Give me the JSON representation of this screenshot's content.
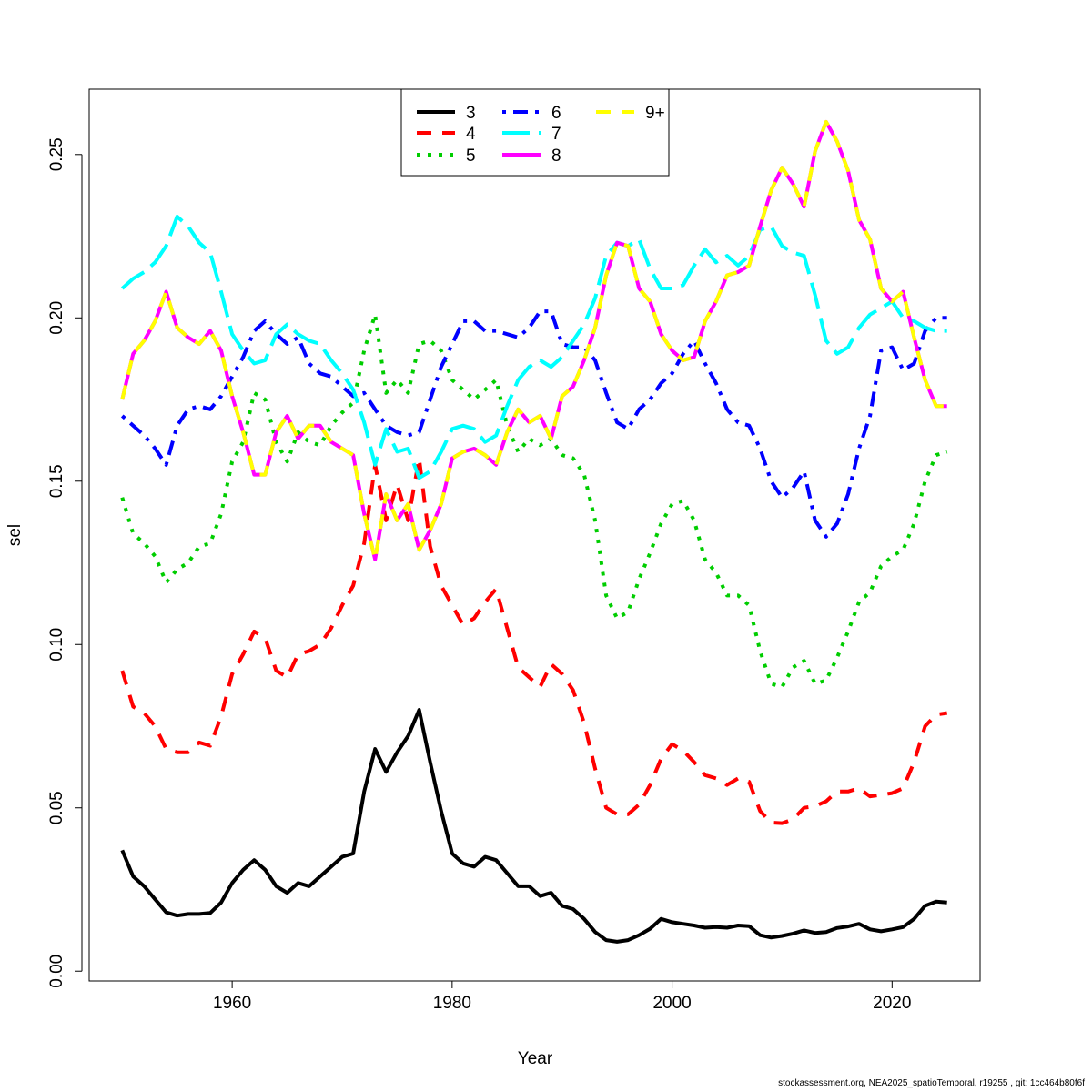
{
  "chart_data": {
    "type": "line",
    "title": "",
    "xlabel": "Year",
    "ylabel": "sel",
    "xlim": [
      1947,
      2028
    ],
    "ylim": [
      -0.003,
      0.27
    ],
    "x_ticks": [
      1960,
      1980,
      2000,
      2020
    ],
    "y_ticks": [
      0.0,
      0.05,
      0.1,
      0.15,
      0.2,
      0.25
    ],
    "y_tick_labels": [
      "0.00",
      "0.05",
      "0.10",
      "0.15",
      "0.20",
      "0.25"
    ],
    "grid": false,
    "legend_position": "top-center",
    "x": [
      1950,
      1951,
      1952,
      1953,
      1954,
      1955,
      1956,
      1957,
      1958,
      1959,
      1960,
      1961,
      1962,
      1963,
      1964,
      1965,
      1966,
      1967,
      1968,
      1969,
      1970,
      1971,
      1972,
      1973,
      1974,
      1975,
      1976,
      1977,
      1978,
      1979,
      1980,
      1981,
      1982,
      1983,
      1984,
      1985,
      1986,
      1987,
      1988,
      1989,
      1990,
      1991,
      1992,
      1993,
      1994,
      1995,
      1996,
      1997,
      1998,
      1999,
      2000,
      2001,
      2002,
      2003,
      2004,
      2005,
      2006,
      2007,
      2008,
      2009,
      2010,
      2011,
      2012,
      2013,
      2014,
      2015,
      2016,
      2017,
      2018,
      2019,
      2020,
      2021,
      2022,
      2023,
      2024,
      2025
    ],
    "series": [
      {
        "name": "3",
        "color": "#000000",
        "dash": "solid",
        "values": [
          0.037,
          0.029,
          0.026,
          0.022,
          0.018,
          0.017,
          0.0175,
          0.0175,
          0.0178,
          0.021,
          0.027,
          0.031,
          0.034,
          0.031,
          0.026,
          0.024,
          0.027,
          0.026,
          0.029,
          0.032,
          0.035,
          0.036,
          0.055,
          0.068,
          0.061,
          0.067,
          0.072,
          0.08,
          0.064,
          0.049,
          0.036,
          0.033,
          0.032,
          0.035,
          0.034,
          0.03,
          0.026,
          0.026,
          0.023,
          0.024,
          0.02,
          0.019,
          0.016,
          0.012,
          0.0095,
          0.009,
          0.0095,
          0.011,
          0.013,
          0.016,
          0.015,
          0.0145,
          0.014,
          0.0133,
          0.0135,
          0.0133,
          0.014,
          0.0138,
          0.011,
          0.0103,
          0.0108,
          0.0115,
          0.0125,
          0.0117,
          0.012,
          0.0132,
          0.0137,
          0.0145,
          0.0128,
          0.0122,
          0.0128,
          0.0135,
          0.016,
          0.02,
          0.0213,
          0.021
        ]
      },
      {
        "name": "4",
        "color": "#ff0000",
        "dash": "dashed",
        "values": [
          0.092,
          0.081,
          0.079,
          0.075,
          0.068,
          0.067,
          0.067,
          0.07,
          0.069,
          0.078,
          0.091,
          0.097,
          0.104,
          0.102,
          0.092,
          0.09,
          0.097,
          0.098,
          0.1,
          0.105,
          0.112,
          0.118,
          0.131,
          0.155,
          0.138,
          0.149,
          0.138,
          0.157,
          0.13,
          0.118,
          0.112,
          0.106,
          0.108,
          0.113,
          0.117,
          0.105,
          0.093,
          0.09,
          0.087,
          0.094,
          0.091,
          0.086,
          0.076,
          0.062,
          0.05,
          0.048,
          0.048,
          0.051,
          0.057,
          0.065,
          0.0695,
          0.0675,
          0.064,
          0.06,
          0.059,
          0.057,
          0.059,
          0.058,
          0.049,
          0.0455,
          0.0453,
          0.0465,
          0.05,
          0.0505,
          0.052,
          0.055,
          0.055,
          0.056,
          0.0535,
          0.054,
          0.0545,
          0.056,
          0.064,
          0.075,
          0.0785,
          0.079
        ]
      },
      {
        "name": "5",
        "color": "#00cd00",
        "dash": "dotted",
        "values": [
          0.145,
          0.134,
          0.131,
          0.127,
          0.119,
          0.123,
          0.125,
          0.13,
          0.131,
          0.14,
          0.156,
          0.162,
          0.177,
          0.175,
          0.162,
          0.156,
          0.165,
          0.162,
          0.161,
          0.167,
          0.171,
          0.174,
          0.19,
          0.201,
          0.177,
          0.181,
          0.177,
          0.192,
          0.193,
          0.19,
          0.181,
          0.178,
          0.175,
          0.178,
          0.181,
          0.167,
          0.159,
          0.163,
          0.161,
          0.163,
          0.158,
          0.157,
          0.152,
          0.138,
          0.115,
          0.108,
          0.11,
          0.12,
          0.128,
          0.137,
          0.143,
          0.144,
          0.138,
          0.126,
          0.122,
          0.115,
          0.115,
          0.112,
          0.098,
          0.088,
          0.087,
          0.093,
          0.095,
          0.088,
          0.089,
          0.096,
          0.104,
          0.113,
          0.116,
          0.124,
          0.127,
          0.129,
          0.137,
          0.15,
          0.158,
          0.159
        ]
      },
      {
        "name": "6",
        "color": "#0000ff",
        "dash": "dashdot",
        "values": [
          0.17,
          0.167,
          0.164,
          0.16,
          0.155,
          0.167,
          0.172,
          0.173,
          0.172,
          0.176,
          0.182,
          0.188,
          0.196,
          0.199,
          0.195,
          0.192,
          0.194,
          0.186,
          0.183,
          0.182,
          0.179,
          0.176,
          0.177,
          0.172,
          0.167,
          0.165,
          0.164,
          0.165,
          0.175,
          0.185,
          0.192,
          0.199,
          0.199,
          0.196,
          0.196,
          0.195,
          0.194,
          0.197,
          0.202,
          0.202,
          0.192,
          0.191,
          0.191,
          0.187,
          0.177,
          0.168,
          0.166,
          0.172,
          0.175,
          0.18,
          0.183,
          0.189,
          0.193,
          0.186,
          0.18,
          0.172,
          0.168,
          0.167,
          0.16,
          0.15,
          0.145,
          0.148,
          0.153,
          0.138,
          0.133,
          0.137,
          0.146,
          0.16,
          0.17,
          0.19,
          0.191,
          0.184,
          0.186,
          0.196,
          0.2,
          0.2
        ]
      },
      {
        "name": "7",
        "color": "#00ffff",
        "dash": "longdash",
        "values": [
          0.209,
          0.212,
          0.214,
          0.217,
          0.222,
          0.231,
          0.228,
          0.223,
          0.22,
          0.208,
          0.195,
          0.19,
          0.186,
          0.187,
          0.195,
          0.198,
          0.195,
          0.193,
          0.192,
          0.187,
          0.183,
          0.178,
          0.168,
          0.155,
          0.166,
          0.159,
          0.16,
          0.151,
          0.153,
          0.159,
          0.166,
          0.167,
          0.166,
          0.162,
          0.164,
          0.173,
          0.181,
          0.185,
          0.187,
          0.185,
          0.188,
          0.193,
          0.198,
          0.206,
          0.219,
          0.223,
          0.222,
          0.224,
          0.215,
          0.209,
          0.209,
          0.21,
          0.216,
          0.221,
          0.217,
          0.219,
          0.216,
          0.219,
          0.227,
          0.228,
          0.222,
          0.22,
          0.219,
          0.207,
          0.193,
          0.189,
          0.191,
          0.197,
          0.201,
          0.203,
          0.205,
          0.2,
          0.199,
          0.197,
          0.196,
          0.196
        ]
      },
      {
        "name": "8",
        "color": "#ff00ff",
        "dash": "solid",
        "values": [
          0.175,
          0.189,
          0.193,
          0.199,
          0.208,
          0.197,
          0.194,
          0.192,
          0.196,
          0.19,
          0.176,
          0.165,
          0.152,
          0.152,
          0.165,
          0.17,
          0.163,
          0.167,
          0.167,
          0.162,
          0.16,
          0.158,
          0.14,
          0.126,
          0.146,
          0.138,
          0.143,
          0.129,
          0.135,
          0.143,
          0.157,
          0.159,
          0.16,
          0.158,
          0.155,
          0.165,
          0.172,
          0.168,
          0.17,
          0.163,
          0.176,
          0.179,
          0.187,
          0.197,
          0.213,
          0.223,
          0.222,
          0.209,
          0.205,
          0.195,
          0.19,
          0.187,
          0.188,
          0.199,
          0.205,
          0.213,
          0.214,
          0.216,
          0.228,
          0.239,
          0.246,
          0.241,
          0.234,
          0.251,
          0.26,
          0.254,
          0.245,
          0.23,
          0.224,
          0.209,
          0.205,
          0.208,
          0.194,
          0.181,
          0.173,
          0.173
        ]
      },
      {
        "name": "9+",
        "color": "#ffff00",
        "dash": "dashed",
        "values": [
          0.175,
          0.189,
          0.193,
          0.199,
          0.208,
          0.197,
          0.194,
          0.192,
          0.196,
          0.19,
          0.176,
          0.165,
          0.152,
          0.152,
          0.165,
          0.17,
          0.163,
          0.167,
          0.167,
          0.162,
          0.16,
          0.158,
          0.14,
          0.126,
          0.146,
          0.138,
          0.143,
          0.129,
          0.135,
          0.143,
          0.157,
          0.159,
          0.16,
          0.158,
          0.155,
          0.165,
          0.172,
          0.168,
          0.17,
          0.163,
          0.176,
          0.179,
          0.187,
          0.197,
          0.213,
          0.223,
          0.222,
          0.209,
          0.205,
          0.195,
          0.19,
          0.187,
          0.188,
          0.199,
          0.205,
          0.213,
          0.214,
          0.216,
          0.228,
          0.239,
          0.246,
          0.241,
          0.234,
          0.251,
          0.26,
          0.254,
          0.245,
          0.23,
          0.224,
          0.209,
          0.205,
          0.208,
          0.194,
          0.181,
          0.173,
          0.173
        ]
      }
    ]
  },
  "footer": {
    "text": "stockassessment.org, NEA2025_spatioTemporal, r19255 , git: 1cc464b80f6f"
  }
}
